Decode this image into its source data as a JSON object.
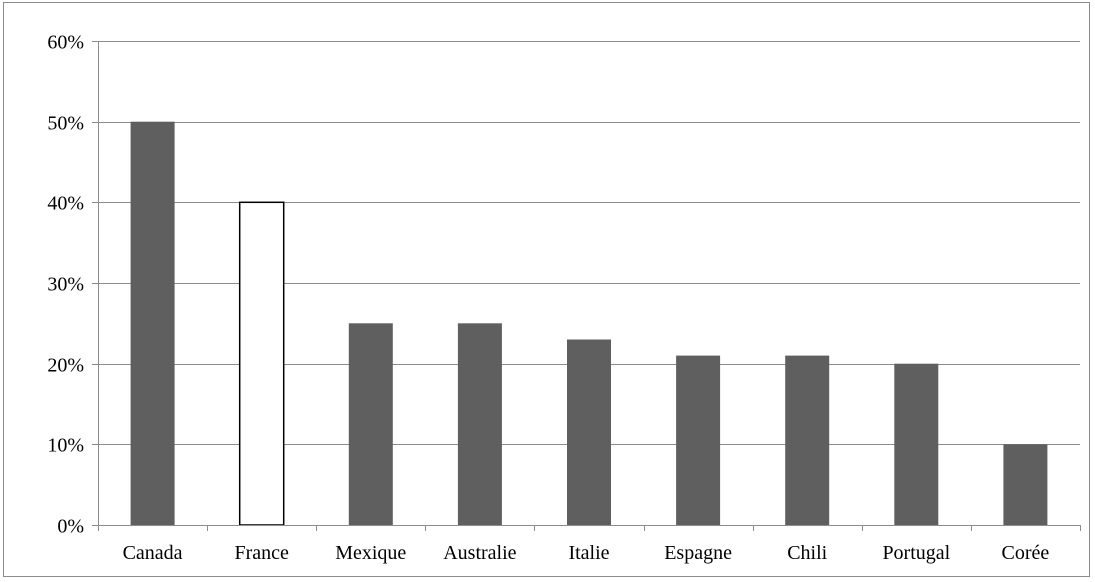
{
  "chart_data": {
    "type": "bar",
    "categories": [
      "Canada",
      "France",
      "Mexique",
      "Australie",
      "Italie",
      "Espagne",
      "Chili",
      "Portugal",
      "Corée"
    ],
    "values": [
      50,
      40,
      25,
      25,
      23,
      21,
      21,
      20,
      10
    ],
    "highlighted_category": "France",
    "y_tick_labels": [
      "0%",
      "10%",
      "20%",
      "30%",
      "40%",
      "50%",
      "60%"
    ],
    "ylim": [
      0,
      60
    ],
    "y_unit": "%",
    "grid": true,
    "legend": "none",
    "colors": {
      "bar": "#5f5f5f",
      "highlight_fill": "#ffffff",
      "highlight_stroke": "#000000",
      "grid": "#8c8c8c",
      "axis": "#8c8c8c"
    }
  }
}
